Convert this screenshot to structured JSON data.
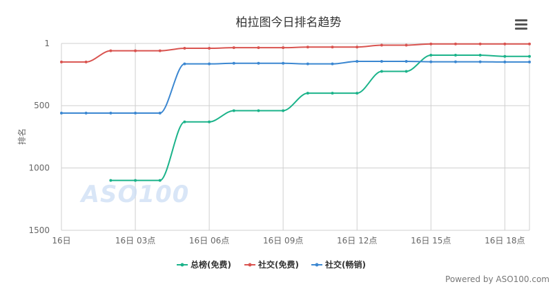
{
  "chart_data": {
    "type": "line",
    "title": "柏拉图今日排名趋势",
    "ylabel": "排名",
    "y_reversed": true,
    "ylim": [
      1,
      1500
    ],
    "yticks": [
      1,
      500,
      1000,
      1500
    ],
    "x_unit": "hour",
    "xlim": [
      0,
      19
    ],
    "xticks": [
      0,
      3,
      6,
      9,
      12,
      15,
      18
    ],
    "xtick_labels": [
      "16日",
      "16日 03点",
      "16日 06点",
      "16日 09点",
      "16日 12点",
      "16日 15点",
      "16日 18点"
    ],
    "grid": true,
    "legend_position": "bottom-center",
    "series": [
      {
        "name": "总榜(免费)",
        "color": "#1bb38a",
        "x": [
          2,
          3,
          4,
          5,
          6,
          7,
          8,
          9,
          10,
          11,
          12,
          13,
          14,
          15,
          16,
          17,
          18,
          19
        ],
        "y": [
          1100,
          1100,
          1100,
          630,
          630,
          540,
          540,
          540,
          400,
          400,
          400,
          225,
          225,
          95,
          95,
          95,
          105,
          105
        ]
      },
      {
        "name": "社交(免费)",
        "color": "#d9534f",
        "x": [
          0,
          1,
          2,
          3,
          4,
          5,
          6,
          7,
          8,
          9,
          10,
          11,
          12,
          13,
          14,
          15,
          16,
          17,
          18,
          19
        ],
        "y": [
          150,
          150,
          60,
          60,
          60,
          40,
          40,
          35,
          35,
          35,
          30,
          30,
          30,
          15,
          15,
          5,
          5,
          5,
          5,
          5
        ]
      },
      {
        "name": "社交(畅销)",
        "color": "#3b87d1",
        "x": [
          0,
          1,
          2,
          3,
          4,
          5,
          6,
          7,
          8,
          9,
          10,
          11,
          12,
          13,
          14,
          15,
          16,
          17,
          18,
          19
        ],
        "y": [
          560,
          560,
          560,
          560,
          560,
          165,
          165,
          160,
          160,
          160,
          165,
          165,
          145,
          145,
          145,
          148,
          148,
          148,
          150,
          150
        ]
      }
    ]
  },
  "watermark": "ASO100",
  "powered_by": "Powered by ASO100.com",
  "menu_icon": "hamburger-menu-icon"
}
